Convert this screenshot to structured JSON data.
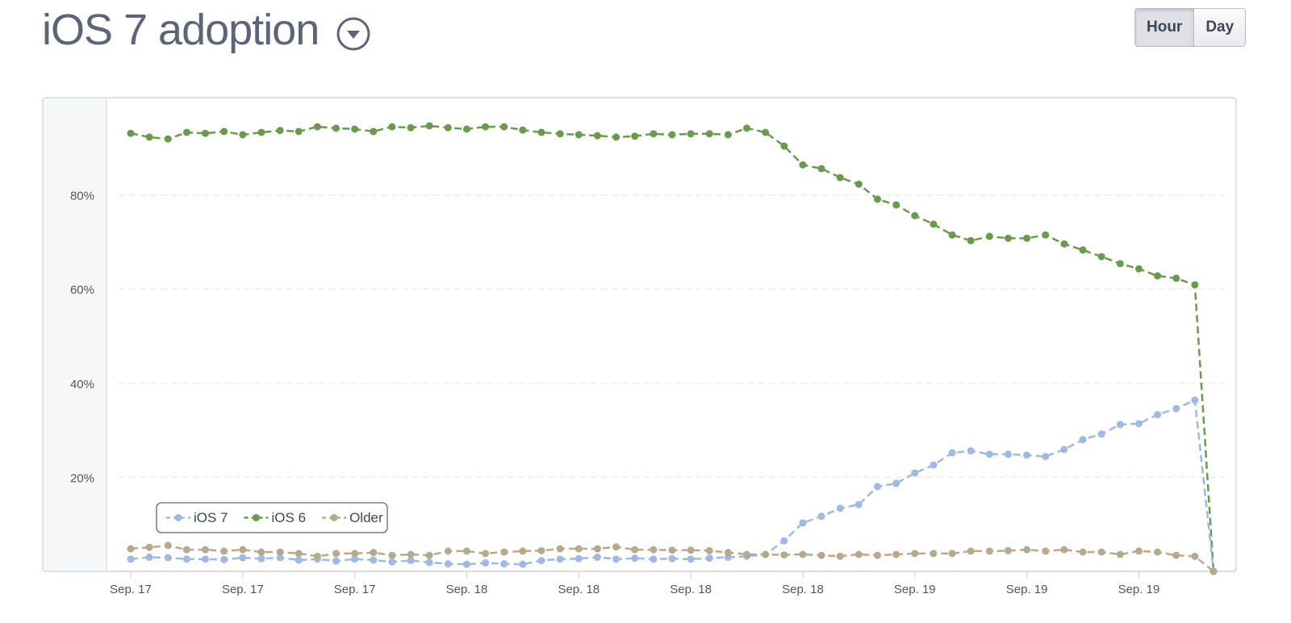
{
  "header": {
    "title": "iOS 7 adoption"
  },
  "controls": {
    "buttons": [
      "Hour",
      "Day"
    ]
  },
  "chart_data": {
    "type": "line",
    "categories": [
      "Sep. 17",
      null,
      null,
      null,
      null,
      null,
      "Sep. 17",
      null,
      null,
      null,
      null,
      null,
      "Sep. 17",
      null,
      null,
      null,
      null,
      null,
      "Sep. 18",
      null,
      null,
      null,
      null,
      null,
      "Sep. 18",
      null,
      null,
      null,
      null,
      null,
      "Sep. 18",
      null,
      null,
      null,
      null,
      null,
      "Sep. 18",
      null,
      null,
      null,
      null,
      null,
      "Sep. 19",
      null,
      null,
      null,
      null,
      null,
      "Sep. 19",
      null,
      null,
      null,
      null,
      null,
      "Sep. 19",
      null,
      null,
      null,
      null
    ],
    "series": [
      {
        "name": "iOS 7",
        "color": "#9fb8e4",
        "values": [
          2.6,
          3.0,
          2.9,
          2.6,
          2.6,
          2.5,
          2.9,
          2.7,
          2.9,
          2.4,
          2.6,
          2.2,
          2.6,
          2.4,
          2.0,
          2.3,
          1.9,
          1.6,
          1.5,
          1.8,
          1.6,
          1.5,
          2.3,
          2.6,
          2.7,
          3.0,
          2.6,
          2.8,
          2.6,
          2.7,
          2.6,
          2.8,
          3.0,
          3.2,
          3.6,
          6.5,
          10.3,
          11.7,
          13.4,
          14.2,
          18.0,
          18.7,
          20.9,
          22.6,
          25.2,
          25.6,
          24.9,
          24.9,
          24.7,
          24.4,
          25.9,
          28.0,
          29.2,
          31.2,
          31.4,
          33.3,
          34.6,
          36.4,
          0
        ]
      },
      {
        "name": "iOS 6",
        "color": "#6a9a4e",
        "values": [
          93.1,
          92.3,
          91.9,
          93.3,
          93.1,
          93.5,
          92.8,
          93.3,
          93.7,
          93.5,
          94.5,
          94.2,
          94.0,
          93.5,
          94.5,
          94.3,
          94.7,
          94.3,
          94.0,
          94.5,
          94.5,
          93.8,
          93.3,
          93.0,
          92.8,
          92.6,
          92.3,
          92.5,
          93.0,
          92.8,
          93.0,
          93.0,
          92.8,
          94.2,
          93.3,
          90.4,
          86.4,
          85.6,
          83.7,
          82.3,
          79.1,
          77.9,
          75.6,
          73.8,
          71.5,
          70.3,
          71.2,
          70.8,
          70.8,
          71.5,
          69.6,
          68.3,
          66.9,
          65.4,
          64.3,
          62.8,
          62.3,
          60.9,
          0
        ]
      },
      {
        "name": "Older",
        "color": "#b5ab8c",
        "values": [
          4.8,
          5.1,
          5.5,
          4.6,
          4.6,
          4.3,
          4.6,
          4.1,
          4.1,
          3.8,
          3.2,
          3.8,
          3.8,
          4.0,
          3.4,
          3.6,
          3.4,
          4.3,
          4.3,
          3.8,
          4.1,
          4.3,
          4.4,
          4.8,
          4.8,
          4.8,
          5.2,
          4.6,
          4.6,
          4.5,
          4.5,
          4.4,
          4.0,
          3.6,
          3.6,
          3.5,
          3.6,
          3.4,
          3.2,
          3.6,
          3.4,
          3.6,
          3.8,
          3.8,
          3.8,
          4.3,
          4.3,
          4.4,
          4.6,
          4.3,
          4.6,
          4.1,
          4.1,
          3.6,
          4.3,
          4.1,
          3.4,
          3.2,
          0
        ]
      }
    ],
    "ylim": [
      0,
      100
    ],
    "yticks": [
      {
        "value": 20,
        "label": "20%"
      },
      {
        "value": 40,
        "label": "40%"
      },
      {
        "value": 60,
        "label": "60%"
      },
      {
        "value": 80,
        "label": "80%"
      }
    ],
    "grid": true,
    "legend": "bottom-left"
  }
}
